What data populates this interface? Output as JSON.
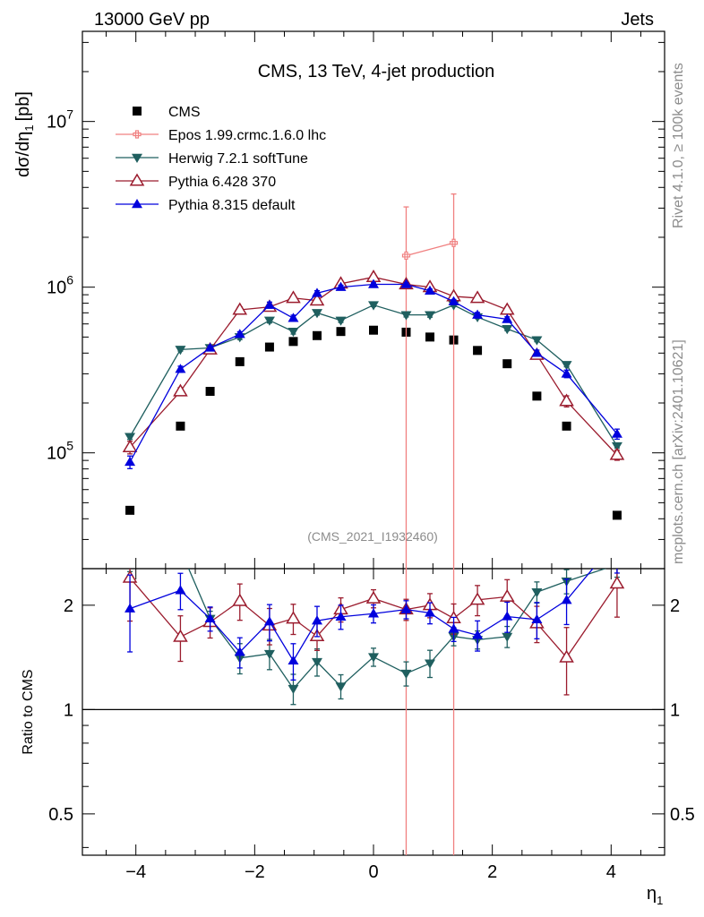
{
  "header": {
    "left": "13000 GeV pp",
    "right": "Jets"
  },
  "side_labels": {
    "rivet": "Rivet 4.1.0, ≥ 100k events",
    "mcplots": "mcplots.cern.ch [arXiv:2401.10621]"
  },
  "chart_data": {
    "type": "scatter",
    "title": "CMS, 13 TeV, 4-jet production",
    "xlabel": "η",
    "xlabel_sub": "1",
    "ylabel": "dσ/dη",
    "ylabel_sub": "1",
    "ylabel_unit": "[pb]",
    "ratio_ylabel": "Ratio to CMS",
    "analysis_id": "(CMS_2021_I1932460)",
    "xlim": [
      -4.9,
      4.9
    ],
    "ylim": [
      20000,
      35000000
    ],
    "ylog": true,
    "ratio_ylim": [
      0.38,
      2.55
    ],
    "x_ticks": [
      -4,
      -2,
      0,
      2,
      4
    ],
    "x_tick_labels": [
      "−4",
      "−2",
      "0",
      "2",
      "4"
    ],
    "y_ticks": [
      {
        "value": 100000,
        "base": "10",
        "exp": "5"
      },
      {
        "value": 1000000,
        "base": "10",
        "exp": "6"
      },
      {
        "value": 10000000,
        "base": "10",
        "exp": "7"
      }
    ],
    "ratio_ticks": [
      {
        "value": 0.5,
        "label": "0.5"
      },
      {
        "value": 1,
        "label": "1"
      },
      {
        "value": 2,
        "label": "2"
      }
    ],
    "x": [
      -4.1,
      -3.25,
      -2.75,
      -2.25,
      -1.75,
      -1.35,
      -0.95,
      -0.55,
      0,
      0.55,
      0.95,
      1.35,
      1.75,
      2.25,
      2.75,
      3.25,
      4.1
    ],
    "series": [
      {
        "name": "CMS",
        "color": "#000000",
        "marker": "square",
        "values": [
          45000,
          145000,
          235000,
          355000,
          435000,
          470000,
          510000,
          540000,
          550000,
          535000,
          500000,
          480000,
          415000,
          345000,
          220000,
          145000,
          42000
        ]
      },
      {
        "name": "Epos 1.99.crmc.1.6.0 lhc",
        "color": "#f08080",
        "marker": "cross",
        "x": [
          0.55,
          1.35
        ],
        "values": [
          1550000,
          1850000
        ],
        "err_lo": [
          1530000,
          1830000
        ],
        "err_hi": [
          1500000,
          1800000
        ]
      },
      {
        "name": "Herwig 7.2.1 softTune",
        "color": "#1f5f5f",
        "marker": "triangle-down",
        "values": [
          125000,
          420000,
          430000,
          500000,
          630000,
          540000,
          700000,
          630000,
          780000,
          680000,
          680000,
          780000,
          660000,
          560000,
          480000,
          340000,
          110000
        ],
        "ratio_err": [
          0.1,
          0.06,
          0.05,
          0.1,
          0.1,
          0.1,
          0.09,
          0.08,
          0.06,
          0.08,
          0.09,
          0.06,
          0.06,
          0.07,
          0.07,
          0.08,
          0.08
        ]
      },
      {
        "name": "Pythia 6.428 370",
        "color": "#9b1c2e",
        "marker": "triangle-open",
        "values": [
          108000,
          235000,
          420000,
          730000,
          760000,
          860000,
          830000,
          1050000,
          1150000,
          1040000,
          1000000,
          880000,
          860000,
          730000,
          390000,
          205000,
          97000
        ],
        "ratio_err": [
          0.25,
          0.15,
          0.1,
          0.12,
          0.12,
          0.1,
          0.09,
          0.08,
          0.06,
          0.07,
          0.08,
          0.1,
          0.1,
          0.12,
          0.12,
          0.22,
          0.2
        ]
      },
      {
        "name": "Pythia 8.315 default",
        "color": "#0000dd",
        "marker": "triangle-up",
        "values": [
          88000,
          320000,
          430000,
          520000,
          780000,
          650000,
          920000,
          1000000,
          1040000,
          1040000,
          950000,
          820000,
          680000,
          640000,
          400000,
          300000,
          130000
        ],
        "ratio_err": [
          0.25,
          0.12,
          0.08,
          0.1,
          0.12,
          0.12,
          0.1,
          0.08,
          0.06,
          0.06,
          0.07,
          0.08,
          0.1,
          0.1,
          0.12,
          0.15,
          0.2
        ]
      }
    ]
  }
}
